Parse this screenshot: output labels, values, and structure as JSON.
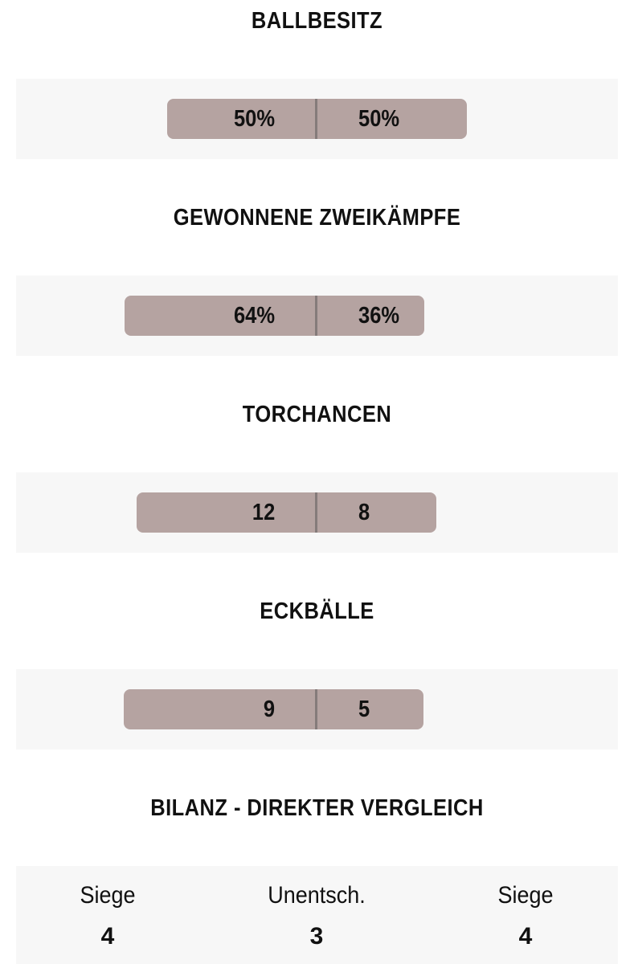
{
  "stats": [
    {
      "title": "BALLBESITZ",
      "home": 50,
      "away": 50,
      "home_label": "50%",
      "away_label": "50%"
    },
    {
      "title": "GEWONNENE ZWEIKÄMPFE",
      "home": 64,
      "away": 36,
      "home_label": "64%",
      "away_label": "36%"
    },
    {
      "title": "TORCHANCEN",
      "home": 12,
      "away": 8
    },
    {
      "title": "ECKBÄLLE",
      "home": 9,
      "away": 5
    }
  ],
  "record": {
    "title": "BILANZ - DIREKTER VERGLEICH",
    "columns": [
      {
        "label": "Siege",
        "value": 4
      },
      {
        "label": "Unentsch.",
        "value": 3
      },
      {
        "label": "Siege",
        "value": 4
      }
    ]
  }
}
